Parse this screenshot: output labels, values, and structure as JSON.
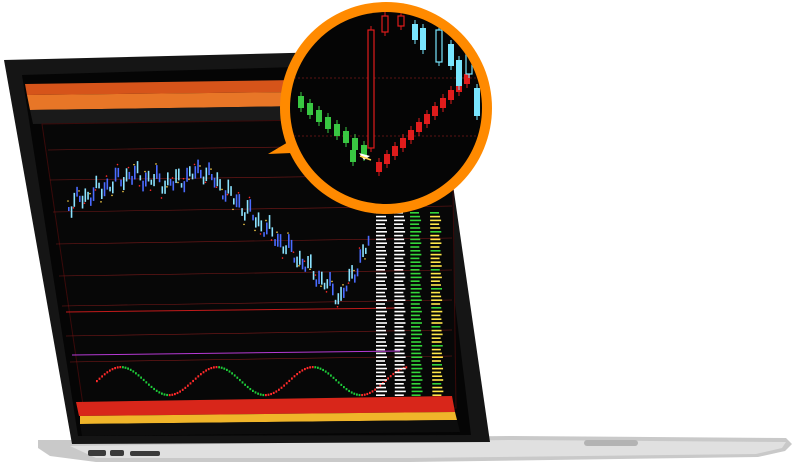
{
  "image": {
    "subject": "laptop-with-trading-chart",
    "colors": {
      "background": "#ffffff",
      "lid": "#1a1a1a",
      "screen": "#050505",
      "bezel": "#0c0c0c",
      "base_silver": "#d9d9d9",
      "base_shadow": "#a9a9a9",
      "toolbar": "#e56a1a",
      "toolbar_dark": "#b84b0b",
      "candle_up": "#8be3ff",
      "candle_down": "#4a6bff",
      "ma_line": "#ffd34a",
      "indicator_up": "#ff2a2a",
      "indicator_down": "#1ecc3a",
      "grid": "#7a1a1a",
      "magnifier_ring": "#ff8a00",
      "magnifier_bg": "#050505",
      "magnifier_up": "#39c742",
      "magnifier_down": "#e01c1c",
      "magnifier_cyan": "#79e6ff",
      "numbers_yellow": "#ffe84a",
      "numbers_green": "#35d63a",
      "numbers_white": "#ffffff"
    },
    "labels_visible": []
  }
}
